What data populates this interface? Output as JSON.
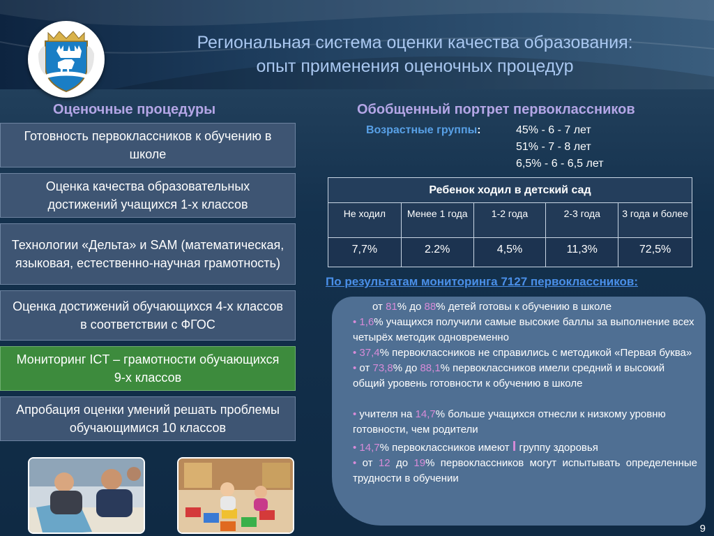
{
  "header": {
    "title_line1": "Региональная система оценки качества образования:",
    "title_line2": "опыт применения оценочных процедур"
  },
  "left": {
    "heading": "Оценочные процедуры",
    "procedures": [
      "Готовность первоклассников к обучению в школе",
      "Оценка качества образовательных достижений учащихся 1-х классов",
      "Технологии «Дельта» и SAM (математическая, языковая, естественно-научная грамотность)",
      "Оценка достижений обучающихся 4-х классов в соответствии с ФГОС",
      "Мониторинг ICT – грамотности обучающихся 9-х классов",
      "Апробация оценки умений решать проблемы обучающимися 10 классов"
    ]
  },
  "right": {
    "heading": "Обобщенный портрет первоклассников",
    "age_label": "Возрастные группы",
    "age_colon": ":",
    "age_groups": [
      "45% - 6 - 7 лет",
      "51% - 7 - 8 лет",
      "6,5% - 6 - 6,5 лет"
    ],
    "table": {
      "title": "Ребенок ходил в детский сад",
      "headers": [
        "Не ходил",
        "Менее 1 года",
        "1-2 года",
        "2-3 года",
        "3 года и более"
      ],
      "values": [
        "7,7%",
        "2.2%",
        "4,5%",
        "11,3%",
        "72,5%"
      ]
    },
    "monitoring_title": "По результатам  мониторинга 7127 первоклассников:",
    "results": {
      "r1_pre": "от ",
      "r1_a": "81",
      "r1_mid": "% до ",
      "r1_b": "88",
      "r1_post": "% детей  готовы к обучению в школе",
      "bullet": "•",
      "r2_a": " 1,6",
      "r2_post": "% учащихся получили самые высокие баллы за выполнение всех четырёх методик  одновременно",
      "r3_a": " 37,4",
      "r3_post": "% первоклассников не справились с методикой «Первая буква»",
      "r4_pre": " от ",
      "r4_a": "73,8",
      "r4_mid": "% до ",
      "r4_b": "88,1",
      "r4_post": "% первоклассников имели средний и высокий общий уровень готовности к обучению в школе",
      "r5_pre": " учителя на ",
      "r5_a": "14,7",
      "r5_post": "% больше учащихся отнесли к низкому уровню готовности, чем родители",
      "r6_a": " 14,7",
      "r6_mid": "% первоклассников имеют ",
      "r6_i": "I",
      "r6_post": " группу здоровья",
      "r7_pre": " от  ",
      "r7_a": "12",
      "r7_mid": "  до  ",
      "r7_b": "19",
      "r7_post": "%  первоклассников  могут  испытывать определенные трудности в обучении"
    }
  },
  "page_number": "9",
  "colors": {
    "accent_text": "#d78bd8",
    "heading_purple": "#b4a6e6",
    "link_blue": "#4a8fe8",
    "green_box": "#3d8b3d"
  },
  "icons": [
    "emblem-icon",
    "students-photo",
    "kindergarten-photo"
  ]
}
